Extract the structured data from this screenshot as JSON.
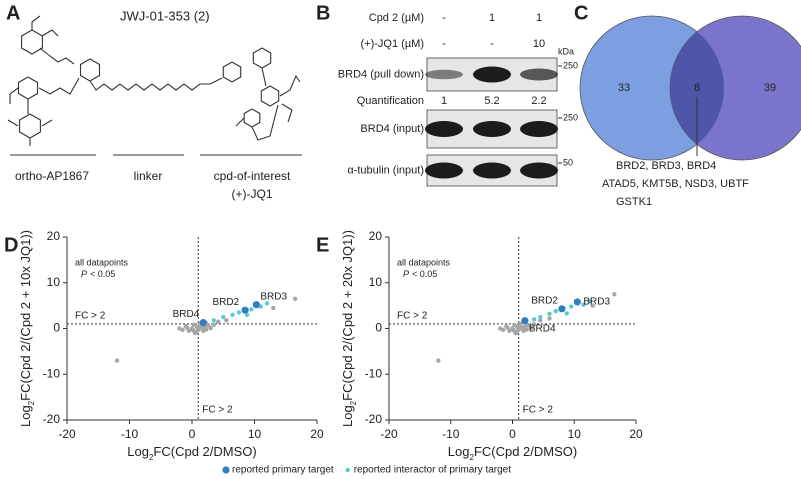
{
  "panels": {
    "a": "A",
    "b": "B",
    "c": "C",
    "d": "D",
    "e": "E"
  },
  "panel_a": {
    "title": "JWJ-01-353 (2)",
    "parts": [
      "ortho-AP1867",
      "linker",
      "cpd-of-interest"
    ],
    "part_sub": "(+)-JQ1"
  },
  "panel_b": {
    "conditions": [
      {
        "label": "Cpd 2 (µM)",
        "values": [
          "-",
          "1",
          "1"
        ]
      },
      {
        "label": "(+)-JQ1 (µM)",
        "values": [
          "-",
          "-",
          "10"
        ]
      }
    ],
    "unit": "kDa",
    "blots": [
      {
        "label": "BRD4 (pull down)",
        "marker": "250"
      },
      {
        "label": "BRD4 (input)",
        "marker": "250"
      },
      {
        "label": "α-tubulin (input)",
        "marker": "50"
      }
    ],
    "quantification": {
      "label": "Quantification",
      "values": [
        1,
        5.2,
        2.2
      ]
    }
  },
  "panel_c": {
    "left": 33,
    "overlap": 8,
    "right": 39,
    "genes": [
      "BRD2, BRD3, BRD4",
      "ATAD5, KMT5B, NSD3, UBTF",
      "GSTK1"
    ]
  },
  "chart_data": [
    {
      "type": "scatter",
      "x_label": {
        "prefix": "Log",
        "sub": "2",
        "rest": "FC(Cpd 2/DMSO)"
      },
      "y_label": {
        "prefix": "Log",
        "sub": "2",
        "rest": "FC(Cpd 2/(Cpd 2 + 10x JQ1))"
      },
      "xlim": [
        -20,
        20
      ],
      "xticks": [
        -20,
        -10,
        0,
        10,
        20
      ],
      "ylim": [
        -20,
        20
      ],
      "yticks": [
        -20,
        -10,
        0,
        10,
        20
      ],
      "threshold": 1,
      "annotations": {
        "all_datapoints": "all datapoints",
        "p_italic": "P",
        "p_rest": "< 0.05",
        "fc_y": "FC > 2",
        "fc_x": "FC > 2"
      },
      "series": [
        {
          "color": "#a6a6a6",
          "x": [
            -1,
            -0.5,
            0,
            0.3,
            0.6,
            0.8,
            1,
            1.2,
            1.5,
            1.8,
            2,
            2.3,
            2.6,
            3,
            -1.5,
            -2,
            0.5,
            1.3,
            2.2,
            -0.8,
            0.2,
            1.7,
            3.5,
            4.2,
            -12,
            16.5,
            13,
            5.5
          ],
          "y": [
            0.5,
            -0.5,
            0,
            0.8,
            -0.8,
            0.3,
            -0.3,
            0.6,
            0.2,
            -0.5,
            0.4,
            -0.2,
            0.7,
            0.1,
            -0.3,
            0,
            -1,
            1,
            1.2,
            0.2,
            -0.4,
            -0.1,
            0.8,
            1.5,
            -7,
            6.5,
            4.5,
            1.8
          ]
        },
        {
          "name": "reported interactor of primary target",
          "color": "#5cc8d8",
          "x": [
            5,
            6.5,
            7.5,
            8.8,
            9.5,
            11,
            12,
            3.5
          ],
          "y": [
            2.5,
            3,
            3.5,
            3,
            4.2,
            4.8,
            5.5,
            1.8
          ]
        },
        {
          "name": "reported primary target",
          "color": "#2f7fc1",
          "x": [
            8.5,
            10.3,
            1.8
          ],
          "y": [
            4,
            5.2,
            1.3
          ],
          "labels": [
            "BRD2",
            "BRD3",
            "BRD4"
          ]
        }
      ]
    },
    {
      "type": "scatter",
      "x_label": {
        "prefix": "Log",
        "sub": "2",
        "rest": "FC(Cpd 2/DMSO)"
      },
      "y_label": {
        "prefix": "Log",
        "sub": "2",
        "rest": "FC(Cpd 2/(Cpd 2 + 20x JQ1))"
      },
      "xlim": [
        -20,
        20
      ],
      "xticks": [
        -20,
        -10,
        0,
        10,
        20
      ],
      "ylim": [
        -20,
        20
      ],
      "yticks": [
        -20,
        -10,
        0,
        10,
        20
      ],
      "threshold": 1,
      "annotations": {
        "all_datapoints": "all datapoints",
        "p_italic": "P",
        "p_rest": "< 0.05",
        "fc_y": "FC > 2",
        "fc_x": "FC > 2"
      },
      "series": [
        {
          "color": "#a6a6a6",
          "x": [
            -1,
            -0.5,
            0,
            0.3,
            0.6,
            0.8,
            1,
            1.2,
            1.5,
            1.8,
            2,
            2.3,
            2.6,
            3,
            -1.5,
            -2,
            0.5,
            1.3,
            2.2,
            -0.8,
            0.2,
            1.7,
            3.5,
            4.5,
            -12,
            16.5,
            13,
            6
          ],
          "y": [
            0.5,
            -0.5,
            0,
            0.8,
            -0.8,
            0.3,
            -0.3,
            0.6,
            0.2,
            -0.5,
            0.4,
            -0.2,
            0.7,
            0.1,
            -0.3,
            0,
            -1,
            1,
            1.4,
            0.2,
            -0.4,
            -0.1,
            0.9,
            1.8,
            -7,
            7.5,
            5,
            2.2
          ]
        },
        {
          "color": "#5cc8d8",
          "x": [
            4.5,
            6,
            7,
            8.8,
            9.5,
            11.5,
            12.5,
            3.5
          ],
          "y": [
            2.5,
            3.2,
            3.8,
            3.3,
            4.8,
            5.2,
            6,
            2
          ]
        },
        {
          "color": "#2f7fc1",
          "x": [
            8,
            10.5,
            2
          ],
          "y": [
            4.3,
            5.8,
            1.7
          ],
          "labels": [
            "BRD2",
            "BRD3",
            "BRD4"
          ]
        }
      ]
    }
  ]
}
